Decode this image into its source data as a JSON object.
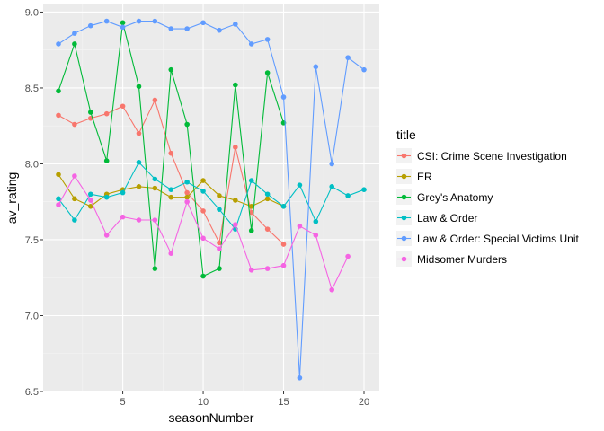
{
  "chart_data": {
    "type": "line",
    "xlabel": "seasonNumber",
    "ylabel": "av_rating",
    "xlim": [
      0.05,
      20.95
    ],
    "ylim": [
      6.5,
      9.05
    ],
    "x_ticks": [
      5,
      10,
      15,
      20
    ],
    "y_ticks": [
      6.5,
      7.0,
      7.5,
      8.0,
      8.5,
      9.0
    ],
    "x_tick_labels": [
      "5",
      "10",
      "15",
      "20"
    ],
    "y_tick_labels": [
      "6.5",
      "7.0",
      "7.5",
      "8.0",
      "8.5",
      "9.0"
    ],
    "grid": true,
    "legend_title": "title",
    "legend_position": "right",
    "colors": {
      "panel_background": "#EBEBEB",
      "grid_major": "#FFFFFF",
      "grid_minor": "#F5F5F5"
    },
    "series": [
      {
        "name": "CSI: Crime Scene Investigation",
        "color": "#F8766D",
        "x": [
          1,
          2,
          3,
          4,
          5,
          6,
          7,
          8,
          9,
          10,
          11,
          12,
          13,
          14,
          15
        ],
        "y": [
          8.32,
          8.26,
          8.3,
          8.33,
          8.38,
          8.2,
          8.42,
          8.07,
          7.81,
          7.69,
          7.48,
          8.11,
          7.68,
          7.57,
          7.47
        ]
      },
      {
        "name": "ER",
        "color": "#B79F00",
        "x": [
          1,
          2,
          3,
          4,
          5,
          6,
          7,
          8,
          9,
          10,
          11,
          12,
          13,
          14,
          15
        ],
        "y": [
          7.93,
          7.77,
          7.72,
          7.8,
          7.83,
          7.85,
          7.84,
          7.78,
          7.78,
          7.89,
          7.79,
          7.76,
          7.72,
          7.77,
          7.72
        ]
      },
      {
        "name": "Grey's Anatomy",
        "color": "#00BA38",
        "x": [
          1,
          2,
          3,
          4,
          5,
          6,
          7,
          8,
          9,
          10,
          11,
          12,
          13,
          14,
          15
        ],
        "y": [
          8.48,
          8.79,
          8.34,
          8.02,
          8.93,
          8.51,
          7.31,
          8.62,
          8.26,
          7.26,
          7.31,
          8.52,
          7.56,
          8.6,
          8.27
        ]
      },
      {
        "name": "Law & Order",
        "color": "#00BFC4",
        "x": [
          1,
          2,
          3,
          4,
          5,
          6,
          7,
          8,
          9,
          10,
          11,
          12,
          13,
          14,
          15,
          16,
          17,
          18,
          19,
          20
        ],
        "y": [
          7.77,
          7.63,
          7.8,
          7.78,
          7.81,
          8.01,
          7.9,
          7.83,
          7.88,
          7.82,
          7.7,
          7.57,
          7.89,
          7.8,
          7.72,
          7.86,
          7.62,
          7.85,
          7.79,
          7.83
        ]
      },
      {
        "name": "Law & Order: Special Victims Unit",
        "color": "#619CFF",
        "x": [
          1,
          2,
          3,
          4,
          5,
          6,
          7,
          8,
          9,
          10,
          11,
          12,
          13,
          14,
          15,
          16,
          17,
          18,
          19,
          20
        ],
        "y": [
          8.79,
          8.86,
          8.91,
          8.94,
          8.9,
          8.94,
          8.94,
          8.89,
          8.89,
          8.93,
          8.88,
          8.92,
          8.79,
          8.82,
          8.44,
          6.59,
          8.64,
          8.0,
          8.7,
          8.62
        ]
      },
      {
        "name": "Midsomer Murders",
        "color": "#F564E3",
        "x": [
          1,
          2,
          3,
          4,
          5,
          6,
          7,
          8,
          9,
          10,
          11,
          12,
          13,
          14,
          15,
          16,
          17,
          18,
          19
        ],
        "y": [
          7.73,
          7.92,
          7.76,
          7.53,
          7.65,
          7.63,
          7.63,
          7.41,
          7.75,
          7.51,
          7.44,
          7.6,
          7.3,
          7.31,
          7.33,
          7.59,
          7.53,
          7.17,
          7.39
        ]
      }
    ]
  }
}
